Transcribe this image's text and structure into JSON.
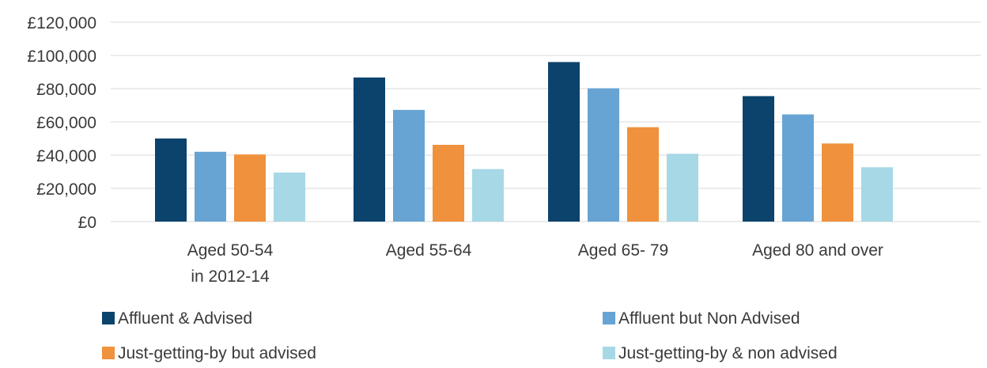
{
  "chart_data": {
    "type": "bar",
    "categories": [
      [
        "Aged 50-54",
        "in 2012-14"
      ],
      [
        "Aged 55-64"
      ],
      [
        "Aged 65- 79"
      ],
      [
        "Aged 80 and over"
      ]
    ],
    "series": [
      {
        "name": "Affluent & Advised",
        "color": "#0b436d",
        "values": [
          50000,
          86700,
          96000,
          75500
        ]
      },
      {
        "name": "Affluent but Non Advised",
        "color": "#67a4d3",
        "values": [
          42000,
          67200,
          80200,
          64500
        ]
      },
      {
        "name": "Just-getting-by but advised",
        "color": "#f0913d",
        "values": [
          40400,
          46200,
          56800,
          47000
        ]
      },
      {
        "name": "Just-getting-by & non advised",
        "color": "#a7d8e6",
        "values": [
          29500,
          31600,
          40800,
          32700
        ]
      }
    ],
    "y_ticks": [
      "£0",
      "£20,000",
      "£40,000",
      "£60,000",
      "£80,000",
      "£100,000",
      "£120,000"
    ],
    "ylim": [
      0,
      120000
    ],
    "y_step": 20000,
    "grid": true,
    "legend_position": "bottom",
    "title": "",
    "xlabel": "",
    "ylabel": ""
  }
}
